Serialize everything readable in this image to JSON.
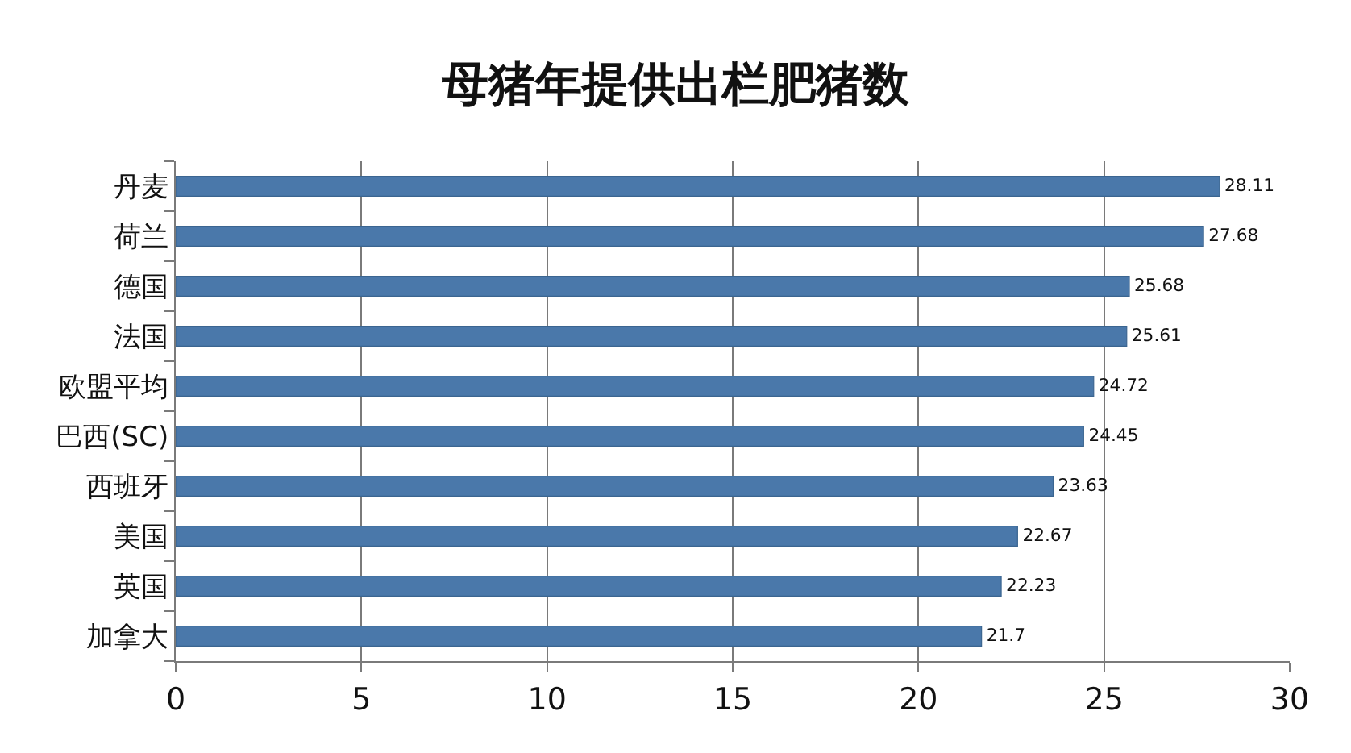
{
  "chart_data": {
    "type": "bar",
    "orientation": "horizontal",
    "title": "母猪年提供出栏肥猪数",
    "categories": [
      "丹麦",
      "荷兰",
      "德国",
      "法国",
      "欧盟平均",
      "巴西(SC)",
      "西班牙",
      "美国",
      "英国",
      "加拿大"
    ],
    "values": [
      28.11,
      27.68,
      25.68,
      25.61,
      24.72,
      24.45,
      23.63,
      22.67,
      22.23,
      21.7
    ],
    "color": "#4a78aa",
    "xlim": [
      0,
      30
    ],
    "xticks": [
      0,
      5,
      10,
      15,
      20,
      25,
      30
    ],
    "grid": "x",
    "legend": false,
    "data_labels": true
  }
}
